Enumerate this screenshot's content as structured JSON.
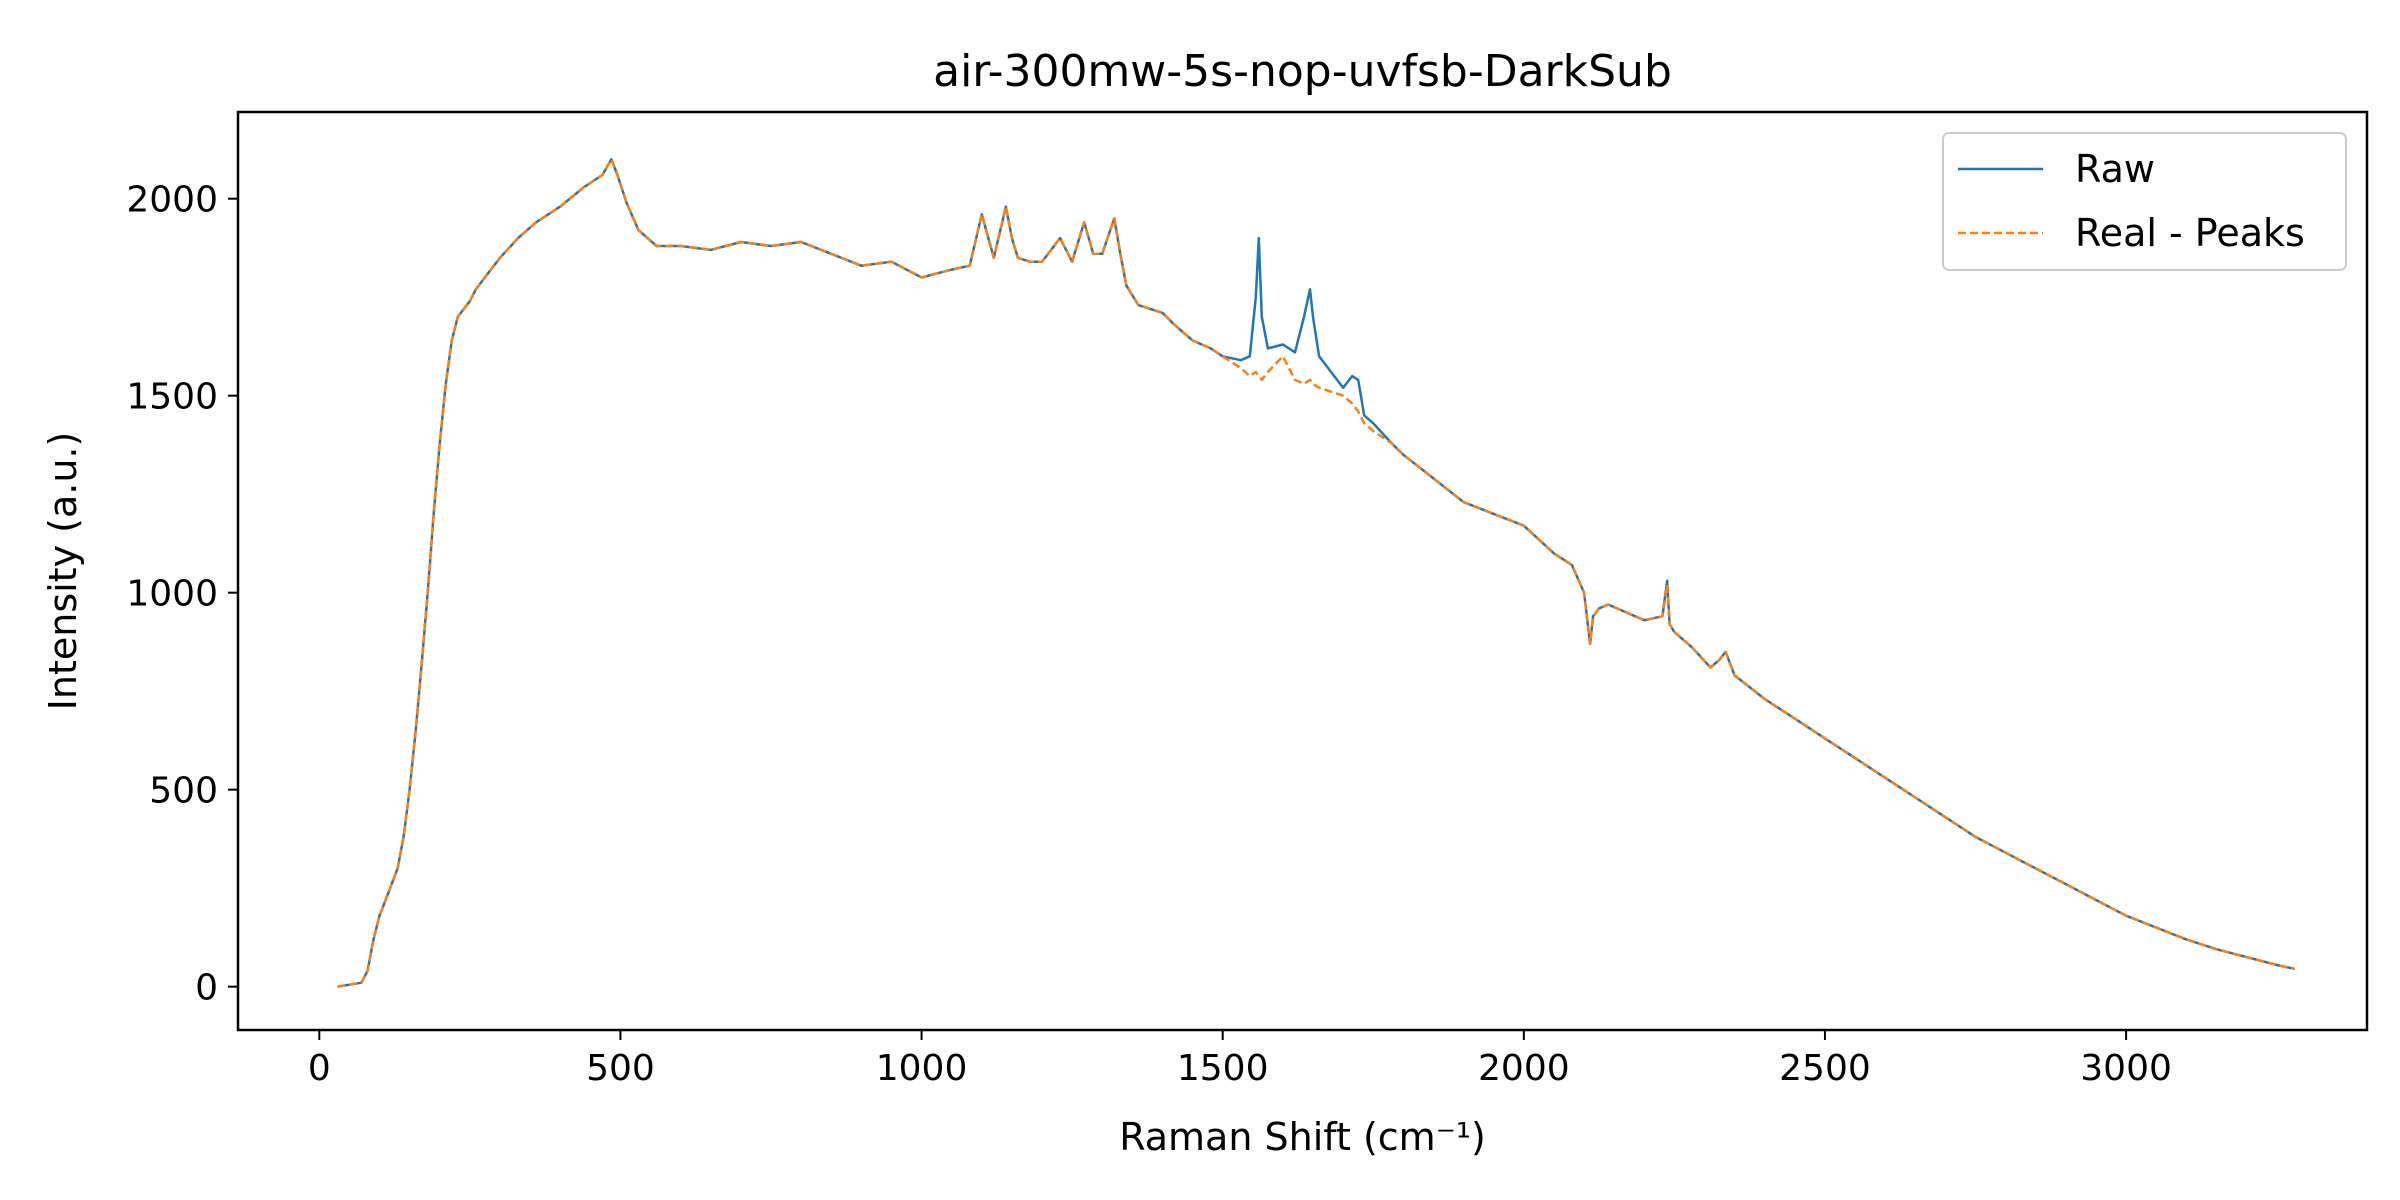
{
  "chart_data": {
    "type": "line",
    "title": "air-300mw-5s-nop-uvfsb-DarkSub",
    "xlabel": "Raman Shift (cm⁻¹)",
    "ylabel": "Intensity (a.u.)",
    "xlim": [
      -135,
      3400
    ],
    "ylim": [
      -110,
      2220
    ],
    "xticks": [
      0,
      500,
      1000,
      1500,
      2000,
      2500,
      3000
    ],
    "yticks": [
      0,
      500,
      1000,
      1500,
      2000
    ],
    "grid": false,
    "legend_position": "top-right",
    "series": [
      {
        "name": "Raw",
        "color": "#1f77b4",
        "style": "solid",
        "x": [
          30,
          50,
          70,
          80,
          90,
          100,
          110,
          120,
          130,
          140,
          150,
          160,
          170,
          180,
          190,
          200,
          210,
          220,
          230,
          240,
          250,
          260,
          280,
          300,
          330,
          360,
          400,
          440,
          470,
          485,
          495,
          510,
          530,
          560,
          600,
          650,
          700,
          750,
          800,
          850,
          900,
          950,
          1000,
          1050,
          1080,
          1100,
          1120,
          1140,
          1150,
          1160,
          1180,
          1200,
          1230,
          1250,
          1270,
          1285,
          1300,
          1320,
          1330,
          1340,
          1360,
          1380,
          1400,
          1420,
          1450,
          1480,
          1500,
          1530,
          1545,
          1555,
          1560,
          1565,
          1575,
          1600,
          1620,
          1635,
          1645,
          1650,
          1660,
          1680,
          1700,
          1715,
          1725,
          1735,
          1750,
          1780,
          1800,
          1850,
          1900,
          1950,
          2000,
          2050,
          2080,
          2100,
          2110,
          2115,
          2125,
          2140,
          2170,
          2200,
          2230,
          2238,
          2242,
          2250,
          2280,
          2310,
          2325,
          2335,
          2350,
          2400,
          2450,
          2500,
          2550,
          2600,
          2650,
          2700,
          2750,
          2800,
          2850,
          2900,
          2950,
          3000,
          3050,
          3100,
          3150,
          3200,
          3250,
          3280
        ],
        "y": [
          0,
          5,
          10,
          40,
          120,
          180,
          220,
          260,
          300,
          380,
          500,
          650,
          820,
          1000,
          1200,
          1380,
          1530,
          1640,
          1700,
          1720,
          1740,
          1770,
          1810,
          1850,
          1900,
          1940,
          1980,
          2030,
          2060,
          2100,
          2060,
          1990,
          1920,
          1880,
          1880,
          1870,
          1890,
          1880,
          1890,
          1860,
          1830,
          1840,
          1800,
          1820,
          1830,
          1960,
          1850,
          1980,
          1900,
          1850,
          1840,
          1840,
          1900,
          1840,
          1940,
          1860,
          1860,
          1950,
          1860,
          1780,
          1730,
          1720,
          1710,
          1680,
          1640,
          1620,
          1600,
          1590,
          1600,
          1750,
          1900,
          1700,
          1620,
          1630,
          1610,
          1700,
          1770,
          1700,
          1600,
          1560,
          1520,
          1550,
          1540,
          1450,
          1430,
          1380,
          1350,
          1290,
          1230,
          1200,
          1170,
          1100,
          1070,
          1000,
          870,
          940,
          960,
          970,
          950,
          930,
          940,
          1030,
          920,
          900,
          860,
          810,
          830,
          850,
          790,
          730,
          680,
          630,
          580,
          530,
          480,
          430,
          380,
          340,
          300,
          260,
          220,
          180,
          150,
          120,
          95,
          75,
          55,
          45
        ]
      },
      {
        "name": "Real - Peaks",
        "color": "#ff7f0e",
        "style": "dashed",
        "x": [
          30,
          50,
          70,
          80,
          90,
          100,
          110,
          120,
          130,
          140,
          150,
          160,
          170,
          180,
          190,
          200,
          210,
          220,
          230,
          240,
          250,
          260,
          280,
          300,
          330,
          360,
          400,
          440,
          470,
          485,
          495,
          510,
          530,
          560,
          600,
          650,
          700,
          750,
          800,
          850,
          900,
          950,
          1000,
          1050,
          1080,
          1100,
          1120,
          1140,
          1150,
          1160,
          1180,
          1200,
          1230,
          1250,
          1270,
          1285,
          1300,
          1320,
          1330,
          1340,
          1360,
          1380,
          1400,
          1420,
          1450,
          1480,
          1500,
          1530,
          1545,
          1555,
          1560,
          1565,
          1575,
          1600,
          1620,
          1635,
          1645,
          1650,
          1660,
          1680,
          1700,
          1715,
          1725,
          1735,
          1750,
          1780,
          1800,
          1850,
          1900,
          1950,
          2000,
          2050,
          2080,
          2100,
          2110,
          2115,
          2125,
          2140,
          2170,
          2200,
          2230,
          2238,
          2242,
          2250,
          2280,
          2310,
          2325,
          2335,
          2350,
          2400,
          2450,
          2500,
          2550,
          2600,
          2650,
          2700,
          2750,
          2800,
          2850,
          2900,
          2950,
          3000,
          3050,
          3100,
          3150,
          3200,
          3250,
          3280
        ],
        "y": [
          0,
          5,
          10,
          40,
          120,
          180,
          220,
          260,
          300,
          380,
          500,
          650,
          820,
          1000,
          1200,
          1380,
          1530,
          1640,
          1700,
          1720,
          1740,
          1770,
          1810,
          1850,
          1900,
          1940,
          1980,
          2030,
          2060,
          2100,
          2060,
          1990,
          1920,
          1880,
          1880,
          1870,
          1890,
          1880,
          1890,
          1860,
          1830,
          1840,
          1800,
          1820,
          1830,
          1960,
          1850,
          1980,
          1900,
          1850,
          1840,
          1840,
          1900,
          1840,
          1940,
          1860,
          1860,
          1950,
          1860,
          1780,
          1730,
          1720,
          1710,
          1680,
          1640,
          1620,
          1600,
          1570,
          1550,
          1560,
          1550,
          1540,
          1560,
          1600,
          1540,
          1530,
          1540,
          1530,
          1520,
          1510,
          1500,
          1480,
          1460,
          1430,
          1410,
          1380,
          1350,
          1290,
          1230,
          1200,
          1170,
          1100,
          1070,
          1000,
          870,
          940,
          960,
          970,
          950,
          930,
          940,
          1020,
          920,
          900,
          860,
          810,
          830,
          850,
          790,
          730,
          680,
          630,
          580,
          530,
          480,
          430,
          380,
          340,
          300,
          260,
          220,
          180,
          150,
          120,
          95,
          75,
          55,
          45
        ]
      }
    ]
  }
}
